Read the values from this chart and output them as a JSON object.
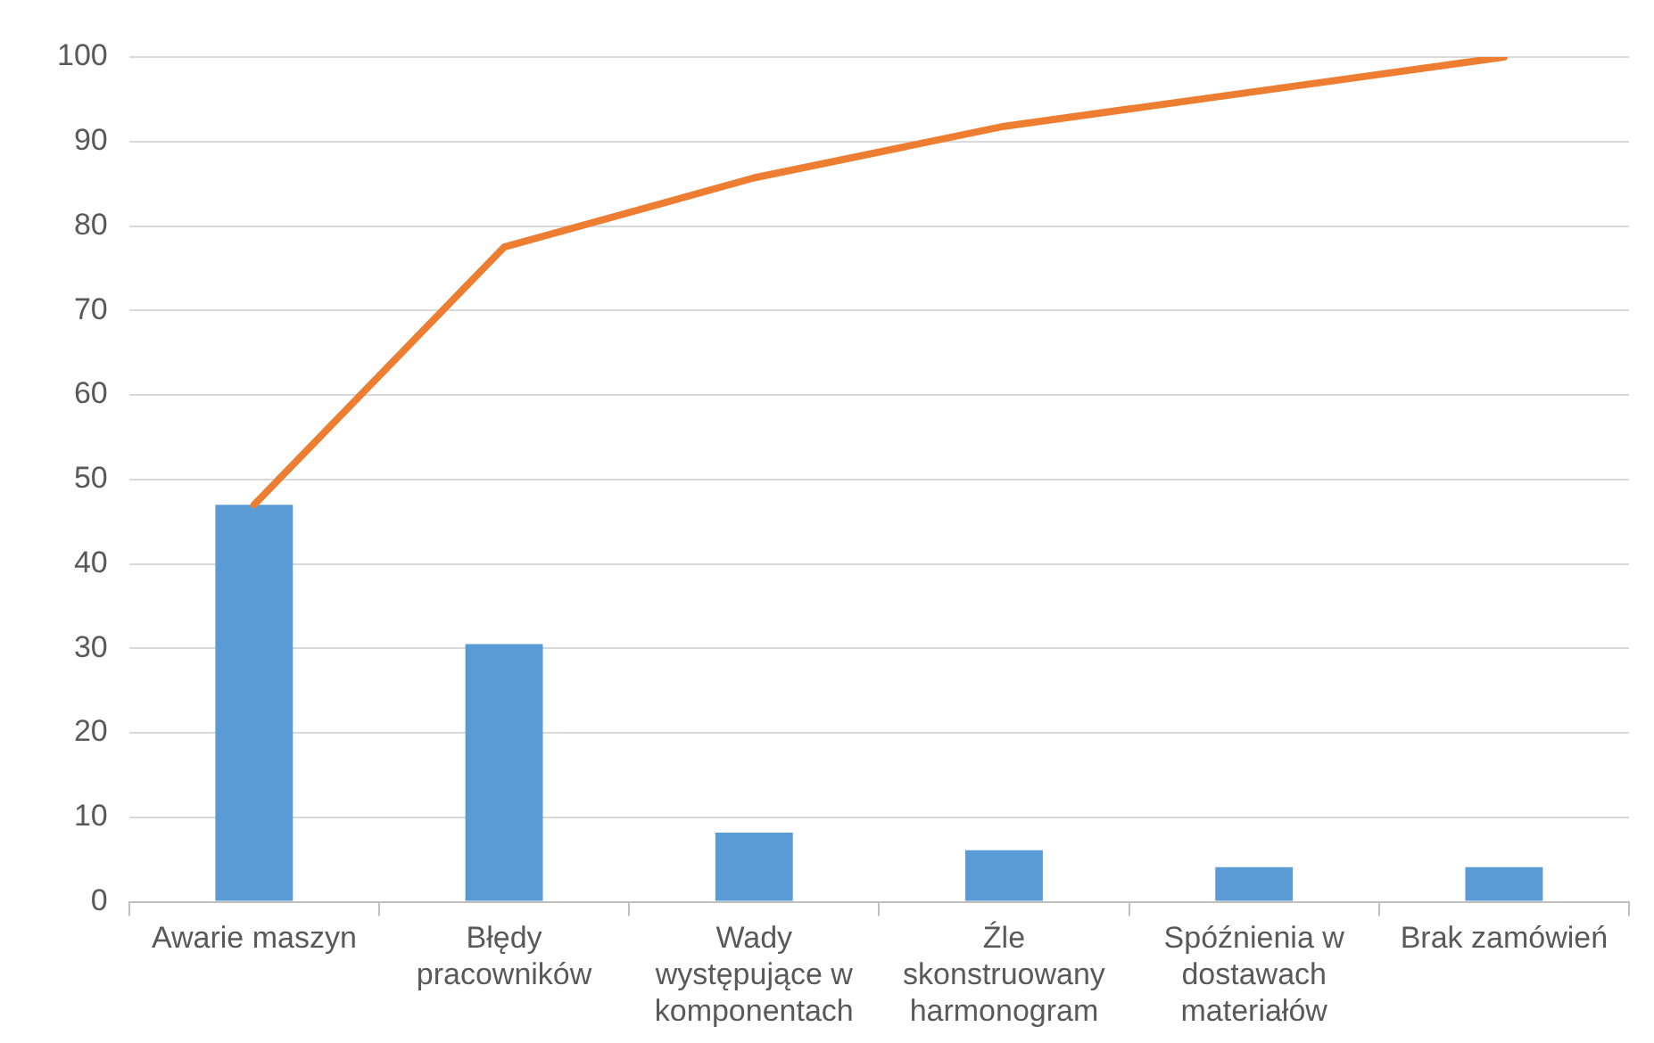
{
  "chart_data": {
    "type": "bar",
    "categories": [
      "Awarie maszyn",
      "Błędy pracowników",
      "Wady występujące w komponentach",
      "Źle skonstruowany harmonogram",
      "Spóźnienia w dostawach materiałów",
      "Brak zamówień"
    ],
    "series": [
      {
        "color": "#5b9bd5",
        "values": [
          47,
          30.5,
          8.2,
          6.1,
          4.1,
          4.1
        ]
      },
      {
        "type": "line",
        "color": "#ed7d31",
        "values": [
          47,
          77.5,
          85.7,
          91.8,
          95.9,
          100
        ]
      }
    ],
    "ylim": [
      0,
      100
    ],
    "yticks": [
      0,
      10,
      20,
      30,
      40,
      50,
      60,
      70,
      80,
      90,
      100
    ],
    "grid": "y",
    "legend": false,
    "marker": "none",
    "line_style": "solid"
  }
}
